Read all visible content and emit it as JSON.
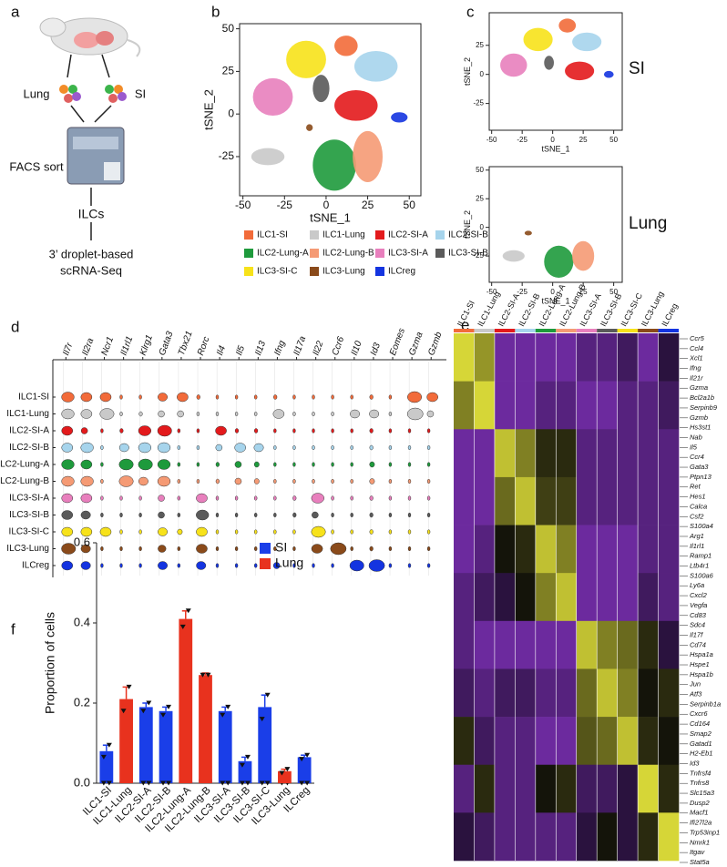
{
  "panel_labels": [
    "a",
    "b",
    "c",
    "d",
    "e",
    "f"
  ],
  "schematic": {
    "labels": [
      "Lung",
      "SI",
      "FACS sort",
      "ILCs",
      "3’ droplet-based",
      "scRNA-Seq"
    ]
  },
  "chart_data": [
    {
      "type": "scatter",
      "xlabel": "tSNE_1",
      "ylabel": "tSNE_2",
      "xlim": [
        -52,
        57
      ],
      "ylim": [
        -48,
        53
      ],
      "xticks": [
        -50,
        -25,
        0,
        25,
        50
      ],
      "yticks": [
        -25,
        0,
        25,
        50
      ],
      "series": [
        {
          "name": "ILC1-SI",
          "color": "#f26b3a",
          "x": [
            12
          ],
          "values": [
            40
          ],
          "spread": [
            7,
            6
          ]
        },
        {
          "name": "ILC1-Lung",
          "color": "#c9c9c9",
          "x": [
            -35
          ],
          "values": [
            -25
          ],
          "spread": [
            10,
            5
          ]
        },
        {
          "name": "ILC2-SI-A",
          "color": "#e31a1c",
          "x": [
            18
          ],
          "values": [
            5
          ],
          "spread": [
            13,
            9
          ]
        },
        {
          "name": "ILC2-SI-B",
          "color": "#a6d4ec",
          "x": [
            30
          ],
          "values": [
            28
          ],
          "spread": [
            13,
            9
          ]
        },
        {
          "name": "ILC2-Lung-A",
          "color": "#1e9a3c",
          "x": [
            5
          ],
          "values": [
            -30
          ],
          "spread": [
            13,
            15
          ]
        },
        {
          "name": "ILC2-Lung-B",
          "color": "#f59a74",
          "x": [
            25
          ],
          "values": [
            -25
          ],
          "spread": [
            9,
            15
          ]
        },
        {
          "name": "ILC3-SI-A",
          "color": "#e87fbd",
          "x": [
            -32
          ],
          "values": [
            10
          ],
          "spread": [
            12,
            11
          ]
        },
        {
          "name": "ILC3-SI-B",
          "color": "#5a5a5a",
          "x": [
            -3
          ],
          "values": [
            15
          ],
          "spread": [
            5,
            8
          ]
        },
        {
          "name": "ILC3-SI-C",
          "color": "#f7e21a",
          "x": [
            -12
          ],
          "values": [
            32
          ],
          "spread": [
            12,
            11
          ]
        },
        {
          "name": "ILC3-Lung",
          "color": "#8a4a1a",
          "x": [
            -10
          ],
          "values": [
            -8
          ],
          "spread": [
            2,
            2
          ]
        },
        {
          "name": "ILCreg",
          "color": "#1434e0",
          "x": [
            44
          ],
          "values": [
            -2
          ],
          "spread": [
            5,
            3
          ]
        }
      ]
    },
    {
      "type": "scatter",
      "title": "SI",
      "xlabel": "tSNE_1",
      "ylabel": "tSNE_2",
      "xlim": [
        -52,
        57
      ],
      "ylim": [
        -48,
        53
      ],
      "xticks": [
        -50,
        -25,
        0,
        25,
        50
      ],
      "yticks": [
        -25,
        0,
        25
      ],
      "series": [
        {
          "name": "ILC1-SI",
          "color": "#f26b3a",
          "x": [
            12
          ],
          "values": [
            42
          ],
          "spread": [
            7,
            6
          ]
        },
        {
          "name": "ILC2-SI-A",
          "color": "#e31a1c",
          "x": [
            22
          ],
          "values": [
            3
          ],
          "spread": [
            12,
            8
          ]
        },
        {
          "name": "ILC2-SI-B",
          "color": "#a6d4ec",
          "x": [
            28
          ],
          "values": [
            28
          ],
          "spread": [
            12,
            8
          ]
        },
        {
          "name": "ILC3-SI-A",
          "color": "#e87fbd",
          "x": [
            -32
          ],
          "values": [
            8
          ],
          "spread": [
            11,
            10
          ]
        },
        {
          "name": "ILC3-SI-B",
          "color": "#5a5a5a",
          "x": [
            -3
          ],
          "values": [
            10
          ],
          "spread": [
            4,
            6
          ]
        },
        {
          "name": "ILC3-SI-C",
          "color": "#f7e21a",
          "x": [
            -12
          ],
          "values": [
            30
          ],
          "spread": [
            12,
            10
          ]
        },
        {
          "name": "ILCreg",
          "color": "#1434e0",
          "x": [
            46
          ],
          "values": [
            0
          ],
          "spread": [
            4,
            3
          ]
        }
      ]
    },
    {
      "type": "scatter",
      "title": "Lung",
      "xlabel": "tSNE_1",
      "ylabel": "tSNE_2",
      "xlim": [
        -52,
        57
      ],
      "ylim": [
        -48,
        53
      ],
      "xticks": [
        -50,
        -25,
        0,
        25,
        50
      ],
      "yticks": [
        -25,
        0,
        25,
        50
      ],
      "series": [
        {
          "name": "ILC1-Lung",
          "color": "#c9c9c9",
          "x": [
            -32
          ],
          "values": [
            -25
          ],
          "spread": [
            9,
            5
          ]
        },
        {
          "name": "ILC2-Lung-A",
          "color": "#1e9a3c",
          "x": [
            5
          ],
          "values": [
            -30
          ],
          "spread": [
            12,
            14
          ]
        },
        {
          "name": "ILC2-Lung-B",
          "color": "#f59a74",
          "x": [
            25
          ],
          "values": [
            -25
          ],
          "spread": [
            9,
            13
          ]
        },
        {
          "name": "ILC3-Lung",
          "color": "#8a4a1a",
          "x": [
            -20
          ],
          "values": [
            -5
          ],
          "spread": [
            3,
            2
          ]
        }
      ]
    },
    {
      "type": "violin",
      "genes": [
        "Il7r",
        "Il2ra",
        "Ncr1",
        "Il1rl1",
        "Klrg1",
        "Gata3",
        "Tbx21",
        "Rorc",
        "Il4",
        "Il5",
        "Il13",
        "Ifng",
        "Il17a",
        "Il22",
        "Ccr6",
        "Il10",
        "Id3",
        "Eomes",
        "Gzma",
        "Gzmb"
      ],
      "categories": [
        "ILC1-SI",
        "ILC1-Lung",
        "ILC2-SI-A",
        "ILC2-SI-B",
        "ILC2-Lung-A",
        "ILC2-Lung-B",
        "ILC3-SI-A",
        "ILC3-SI-B",
        "ILC3-SI-C",
        "ILC3-Lung",
        "ILCreg"
      ],
      "colors": [
        "#f26b3a",
        "#c9c9c9",
        "#e31a1c",
        "#a6d4ec",
        "#1e9a3c",
        "#f59a74",
        "#e87fbd",
        "#5a5a5a",
        "#f7e21a",
        "#8a4a1a",
        "#1434e0"
      ],
      "values": [
        [
          0.7,
          0.6,
          0.6,
          0.05,
          0.05,
          0.5,
          0.6,
          0.1,
          0.05,
          0.05,
          0.05,
          0.1,
          0.05,
          0.05,
          0.05,
          0.05,
          0.1,
          0.05,
          0.8,
          0.6
        ],
        [
          0.7,
          0.6,
          0.8,
          0.05,
          0.1,
          0.3,
          0.3,
          0.05,
          0.05,
          0.05,
          0.05,
          0.6,
          0.05,
          0.05,
          0.05,
          0.5,
          0.5,
          0.05,
          0.9,
          0.3
        ],
        [
          0.6,
          0.3,
          0.05,
          0.1,
          0.7,
          0.8,
          0.05,
          0.05,
          0.6,
          0.1,
          0.1,
          0.05,
          0.05,
          0.05,
          0.05,
          0.05,
          0.1,
          0.05,
          0.05,
          0.05
        ],
        [
          0.6,
          0.7,
          0.05,
          0.5,
          0.7,
          0.7,
          0.05,
          0.05,
          0.3,
          0.6,
          0.5,
          0.05,
          0.05,
          0.05,
          0.05,
          0.05,
          0.1,
          0.05,
          0.05,
          0.05
        ],
        [
          0.7,
          0.6,
          0.05,
          0.8,
          0.8,
          0.7,
          0.05,
          0.05,
          0.1,
          0.3,
          0.2,
          0.05,
          0.05,
          0.05,
          0.05,
          0.05,
          0.2,
          0.05,
          0.05,
          0.05
        ],
        [
          0.7,
          0.7,
          0.05,
          0.8,
          0.5,
          0.7,
          0.05,
          0.05,
          0.1,
          0.3,
          0.2,
          0.05,
          0.05,
          0.05,
          0.05,
          0.05,
          0.2,
          0.05,
          0.05,
          0.05
        ],
        [
          0.6,
          0.6,
          0.05,
          0.05,
          0.05,
          0.3,
          0.05,
          0.6,
          0.05,
          0.05,
          0.05,
          0.05,
          0.1,
          0.7,
          0.05,
          0.05,
          0.1,
          0.05,
          0.05,
          0.05
        ],
        [
          0.6,
          0.5,
          0.05,
          0.05,
          0.05,
          0.3,
          0.05,
          0.7,
          0.05,
          0.05,
          0.05,
          0.05,
          0.1,
          0.3,
          0.05,
          0.05,
          0.1,
          0.05,
          0.05,
          0.05
        ],
        [
          0.6,
          0.6,
          0.6,
          0.05,
          0.05,
          0.5,
          0.2,
          0.6,
          0.05,
          0.05,
          0.05,
          0.05,
          0.05,
          0.8,
          0.05,
          0.05,
          0.1,
          0.05,
          0.05,
          0.05
        ],
        [
          0.8,
          0.5,
          0.05,
          0.05,
          0.05,
          0.4,
          0.05,
          0.6,
          0.05,
          0.05,
          0.05,
          0.05,
          0.05,
          0.6,
          0.9,
          0.05,
          0.1,
          0.05,
          0.05,
          0.05
        ],
        [
          0.6,
          0.5,
          0.05,
          0.05,
          0.05,
          0.5,
          0.05,
          0.5,
          0.05,
          0.05,
          0.05,
          0.3,
          0.05,
          0.05,
          0.05,
          0.8,
          0.9,
          0.05,
          0.05,
          0.05
        ]
      ]
    },
    {
      "type": "heatmap",
      "categories": [
        "ILC1-SI",
        "ILC1-Lung",
        "ILC2-SI-A",
        "ILC2-SI-B",
        "ILC2-Lung-A",
        "ILC2-Lung-B",
        "ILC3-SI-A",
        "ILC3-SI-B",
        "ILC3-SI-C",
        "ILC3-Lung",
        "ILCreg"
      ],
      "colors": [
        "#f26b3a",
        "#c9c9c9",
        "#e31a1c",
        "#a6d4ec",
        "#1e9a3c",
        "#f59a74",
        "#e87fbd",
        "#5a5a5a",
        "#f7e21a",
        "#8a4a1a",
        "#1434e0"
      ],
      "genes": [
        "Ccr5",
        "Ccl4",
        "Xcl1",
        "Ifng",
        "Il21r",
        "Gzma",
        "Bcl2a1b",
        "Serpinb9",
        "Gzmb",
        "Hs3st1",
        "Nab",
        "Il5",
        "Ccr4",
        "Gata3",
        "Ptpn13",
        "Ret",
        "Hes1",
        "Calca",
        "Csf2",
        "S100a4",
        "Arg1",
        "Il1rl1",
        "Ramp1",
        "Ltb4r1",
        "S100a6",
        "Ly6a",
        "Cxcl2",
        "Vegfa",
        "Cd83",
        "Sdc4",
        "Il17f",
        "Cd74",
        "Hspa1a",
        "Hspe1",
        "Hspa1b",
        "Jun",
        "Atf3",
        "Serpinb1a",
        "Cxcr6",
        "Cd164",
        "Smap2",
        "Gatad1",
        "H2-Eb1",
        "Id3",
        "Tnfrsf4",
        "Tnfrs8",
        "Slc15a3",
        "Dusp2",
        "Macf1",
        "Ifi27l2a",
        "Trp53inp1",
        "Nmrk1",
        "Itgav",
        "Stat5a"
      ],
      "values": [
        [
          1.8,
          1.2,
          -0.8,
          -0.8,
          -0.8,
          -0.8,
          -0.6,
          -0.6,
          -0.4,
          -0.8,
          -0.2
        ],
        [
          1.0,
          1.8,
          -0.8,
          -0.8,
          -0.6,
          -0.6,
          -0.8,
          -0.8,
          -0.6,
          -0.6,
          -0.4
        ],
        [
          -0.8,
          -0.8,
          1.6,
          1.0,
          0.2,
          0.2,
          -0.6,
          -0.6,
          -0.6,
          -0.6,
          -0.6
        ],
        [
          -0.8,
          -0.8,
          0.8,
          1.6,
          0.4,
          0.4,
          -0.6,
          -0.6,
          -0.6,
          -0.6,
          -0.6
        ],
        [
          -0.8,
          -0.6,
          0.0,
          0.2,
          1.6,
          1.0,
          -0.8,
          -0.8,
          -0.8,
          -0.6,
          -0.6
        ],
        [
          -0.6,
          -0.4,
          -0.2,
          0.0,
          1.0,
          1.6,
          -0.8,
          -0.8,
          -0.8,
          -0.4,
          -0.6
        ],
        [
          -0.6,
          -0.8,
          -0.8,
          -0.8,
          -0.8,
          -0.8,
          1.6,
          1.0,
          0.8,
          0.2,
          -0.2
        ],
        [
          -0.4,
          -0.6,
          -0.4,
          -0.4,
          -0.6,
          -0.6,
          0.8,
          1.6,
          1.0,
          0.0,
          0.2
        ],
        [
          0.2,
          -0.4,
          -0.6,
          -0.6,
          -0.8,
          -0.8,
          0.6,
          0.8,
          1.6,
          0.2,
          0.0
        ],
        [
          -0.6,
          0.2,
          -0.6,
          -0.6,
          0.0,
          0.2,
          -0.4,
          -0.4,
          -0.2,
          1.8,
          0.2
        ],
        [
          -0.2,
          -0.4,
          -0.6,
          -0.6,
          -0.6,
          -0.6,
          -0.2,
          0.0,
          -0.2,
          0.2,
          1.8
        ]
      ]
    },
    {
      "type": "bar",
      "ylabel": "Proportion of cells",
      "categories": [
        "ILC1-SI",
        "ILC1-Lung",
        "ILC2-SI-A",
        "ILC2-SI-B",
        "ILC2-Lung-A",
        "ILC2-Lung-B",
        "ILC3-SI-A",
        "ILC3-SI-B",
        "ILC3-SI-C",
        "ILC3-Lung",
        "ILCreg"
      ],
      "ylim": [
        0,
        0.6
      ],
      "yticks": [
        {
          "value": 0,
          "label": "0.0"
        },
        0.2,
        0.4,
        0.6
      ],
      "legend": "top-right",
      "series": [
        {
          "name": "SI",
          "color": "#1a3ee8",
          "values": [
            0.08,
            0.005,
            0.19,
            0.18,
            0.005,
            0.01,
            0.18,
            0.055,
            0.19,
            0,
            0.065
          ],
          "errors": [
            0.015,
            0,
            0.01,
            0.01,
            0,
            0,
            0.01,
            0.01,
            0.03,
            0,
            0.005
          ],
          "replicates": [
            [
              0.065,
              0.095
            ],
            [
              0.005,
              0.005
            ],
            [
              0.18,
              0.2
            ],
            [
              0.17,
              0.19
            ],
            [
              0.005,
              0.005
            ],
            [
              0.01,
              0.01
            ],
            [
              0.17,
              0.19
            ],
            [
              0.045,
              0.065
            ],
            [
              0.16,
              0.22
            ],
            [
              0,
              0
            ],
            [
              0.06,
              0.07
            ]
          ]
        },
        {
          "name": "Lung",
          "color": "#e8321e",
          "values": [
            0,
            0.21,
            0,
            0,
            0.41,
            0.27,
            0,
            0,
            0,
            0.03,
            0
          ],
          "errors": [
            0,
            0.03,
            0,
            0,
            0.02,
            0.005,
            0,
            0,
            0,
            0.005,
            0
          ],
          "replicates": [
            [
              0,
              0
            ],
            [
              0.18,
              0.24
            ],
            [
              0,
              0
            ],
            [
              0,
              0
            ],
            [
              0.39,
              0.43
            ],
            [
              0.27,
              0.27
            ],
            [
              0,
              0
            ],
            [
              0,
              0
            ],
            [
              0,
              0
            ],
            [
              0.025,
              0.035
            ],
            [
              0,
              0
            ]
          ]
        }
      ]
    }
  ]
}
